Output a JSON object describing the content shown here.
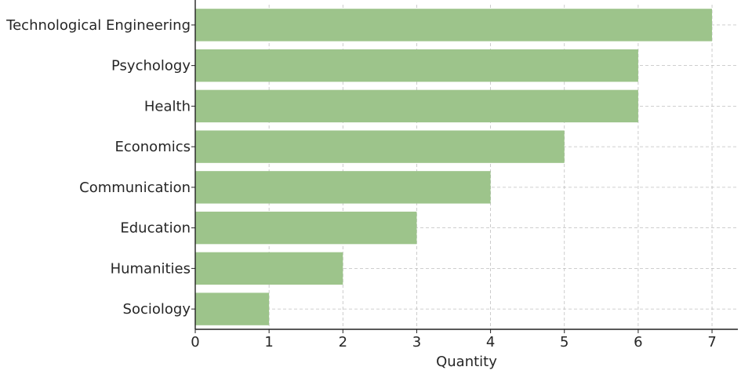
{
  "chart_data": {
    "type": "bar",
    "orientation": "horizontal",
    "categories": [
      "Technological Engineering",
      "Psychology",
      "Health",
      "Economics",
      "Communication",
      "Education",
      "Humanities",
      "Sociology"
    ],
    "values": [
      7,
      6,
      6,
      5,
      4,
      3,
      2,
      1
    ],
    "title": "",
    "xlabel": "Quantity",
    "ylabel": "",
    "xlim": [
      0,
      7.35
    ],
    "xticks": [
      0,
      1,
      2,
      3,
      4,
      5,
      6,
      7
    ],
    "grid": true,
    "bar_color": "#9dc48b"
  }
}
